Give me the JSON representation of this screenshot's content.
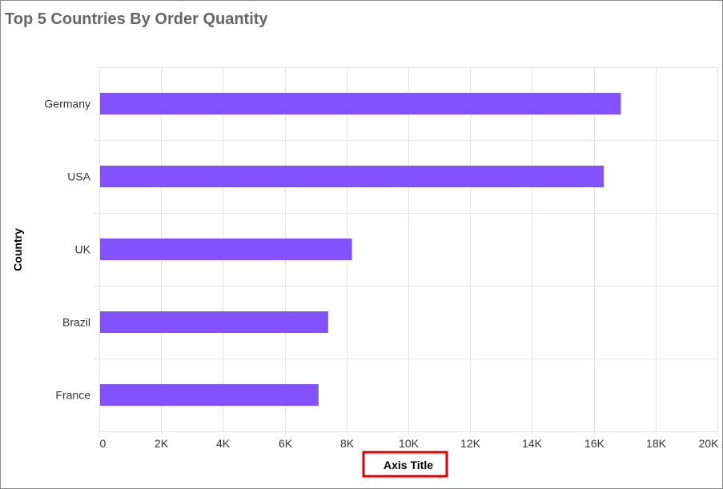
{
  "chart_data": {
    "type": "bar",
    "orientation": "horizontal",
    "title": "Top 5 Countries By Order Quantity",
    "categories": [
      "Germany",
      "USA",
      "UK",
      "Brazil",
      "France"
    ],
    "values": [
      16850,
      16300,
      8150,
      7380,
      7070
    ],
    "xlabel": "Axis Title",
    "ylabel": "Country",
    "xlim": [
      0,
      20000
    ],
    "xticks": [
      "0",
      "2K",
      "4K",
      "6K",
      "8K",
      "10K",
      "12K",
      "14K",
      "16K",
      "18K",
      "20K"
    ],
    "grid": true,
    "legend": "none",
    "bar_color": "#8451FF",
    "xlabel_highlight_color": "#E00000"
  }
}
